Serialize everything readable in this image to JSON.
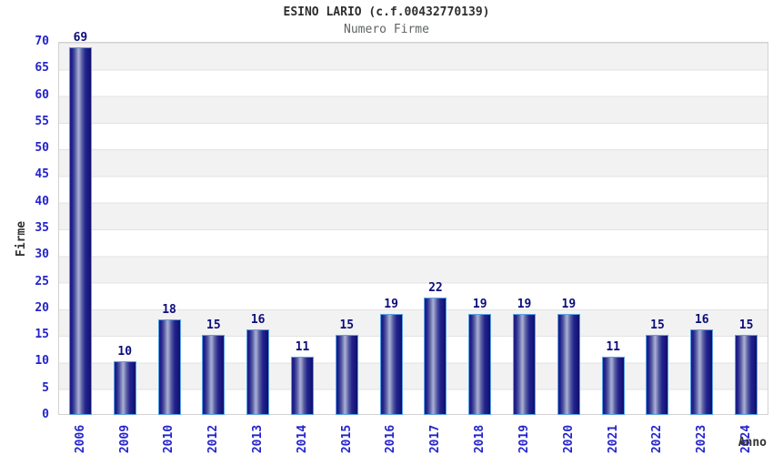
{
  "chart_data": {
    "type": "bar",
    "title": "ESINO LARIO (c.f.00432770139)",
    "subtitle": "Numero Firme",
    "xlabel": "Anno",
    "ylabel": "Firme",
    "categories": [
      "2006",
      "2009",
      "2010",
      "2012",
      "2013",
      "2014",
      "2015",
      "2016",
      "2017",
      "2018",
      "2019",
      "2020",
      "2021",
      "2022",
      "2023",
      "2024"
    ],
    "values": [
      69,
      10,
      18,
      15,
      16,
      11,
      15,
      19,
      22,
      19,
      19,
      19,
      11,
      15,
      16,
      15
    ],
    "show_value_labels": true,
    "ylim": [
      0,
      70
    ],
    "yticks": [
      0,
      5,
      10,
      15,
      20,
      25,
      30,
      35,
      40,
      45,
      50,
      55,
      60,
      65,
      70
    ],
    "grid": "alternating-horizontal-bands-every-5",
    "legend": "none",
    "colors": {
      "bar_dark": "#1b1b85",
      "bar_highlight": "#a8acd4",
      "bar_border": "#58a2e2",
      "tick_label": "#2424cc",
      "value_label": "#0d0d7a",
      "band_gray": "#f2f2f2",
      "band_white": "#ffffff",
      "gridline": "#e3e3e3",
      "plot_border": "#d2d2d2",
      "title": "#2e2e2e",
      "subtitle": "#5f6464",
      "axis_label": "#333333"
    }
  }
}
